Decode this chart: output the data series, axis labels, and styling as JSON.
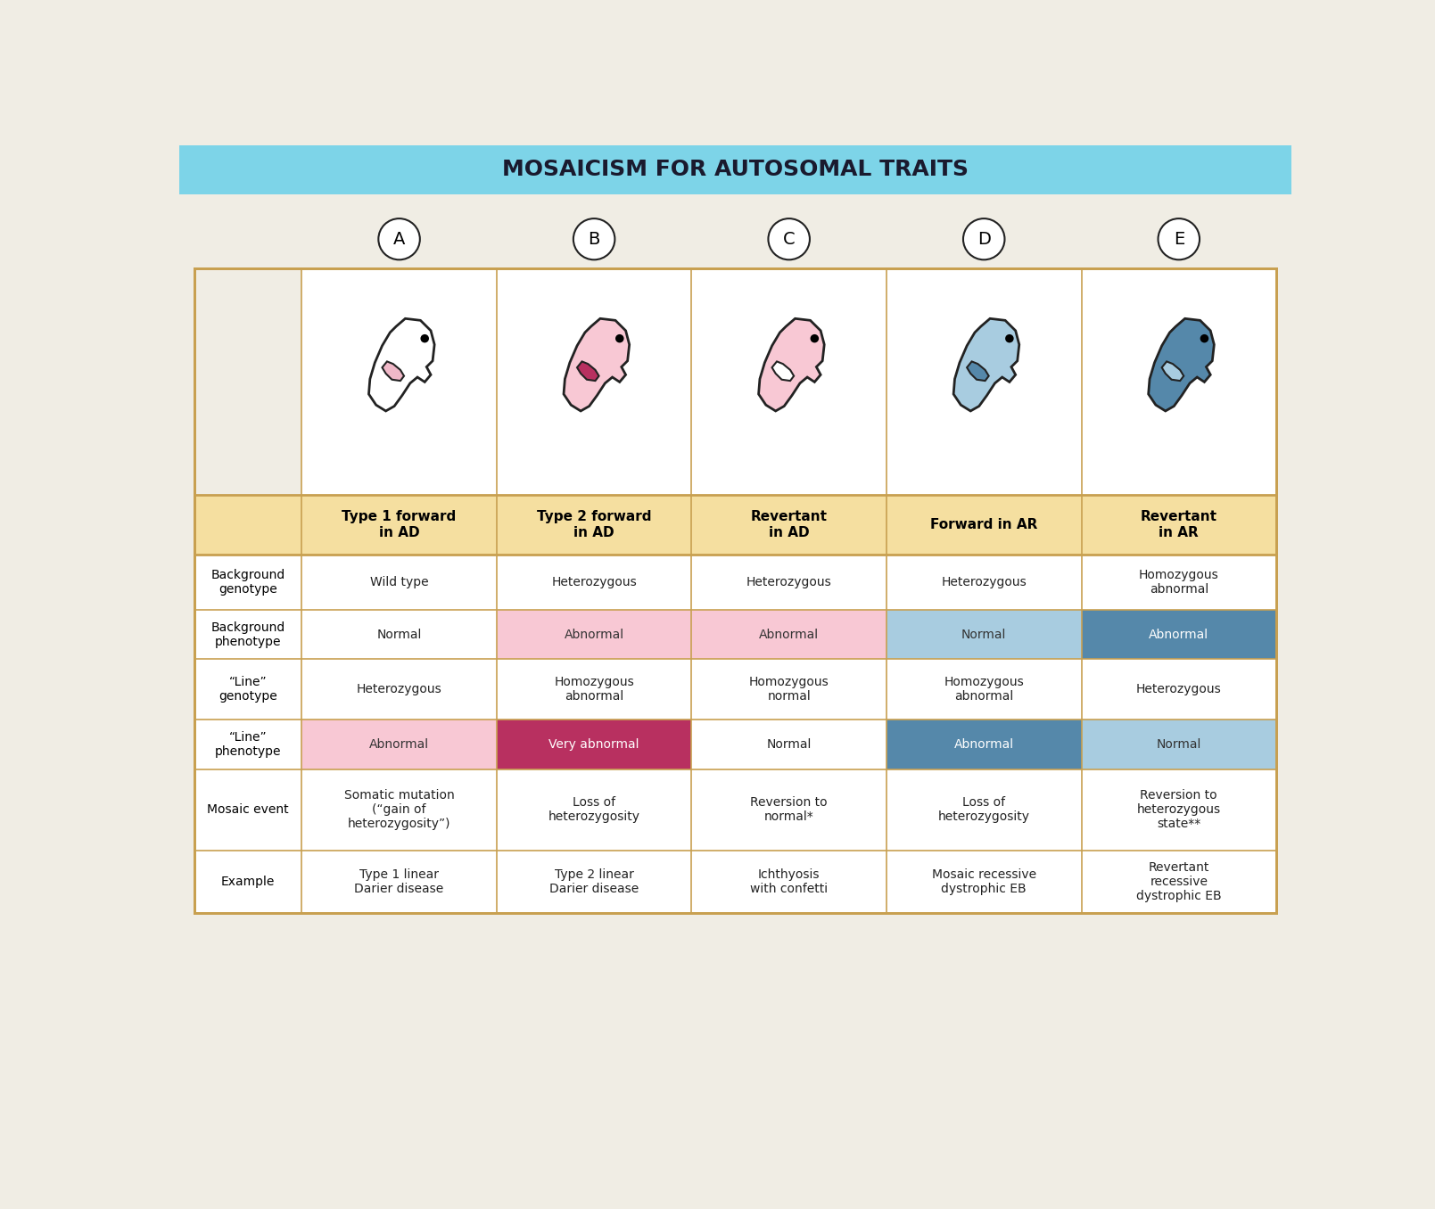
{
  "title": "MOSAICISM FOR AUTOSOMAL TRAITS",
  "title_bg": "#7dd4e8",
  "title_color": "#1a1a2e",
  "page_bg": "#f0ede4",
  "col_labels": [
    "A",
    "B",
    "C",
    "D",
    "E"
  ],
  "col_headers": [
    "Type 1 forward\nin AD",
    "Type 2 forward\nin AD",
    "Revertant\nin AD",
    "Forward in AR",
    "Revertant\nin AR"
  ],
  "col_header_bg": "#f5dfa0",
  "row_labels": [
    "Background\ngenotype",
    "Background\nphenotype",
    "“Line”\ngenotype",
    "“Line”\nphenotype",
    "Mosaic event",
    "Example"
  ],
  "table_data": [
    [
      "Wild type",
      "Heterozygous",
      "Heterozygous",
      "Heterozygous",
      "Homozygous\nabnormal"
    ],
    [
      "Normal",
      "Abnormal",
      "Abnormal",
      "Normal",
      "Abnormal"
    ],
    [
      "Heterozygous",
      "Homozygous\nabnormal",
      "Homozygous\nnormal",
      "Homozygous\nabnormal",
      "Heterozygous"
    ],
    [
      "Abnormal",
      "Very abnormal",
      "Normal",
      "Abnormal",
      "Normal"
    ],
    [
      "Somatic mutation\n(“gain of\nheterozygosity”)",
      "Loss of\nheterozygosity",
      "Reversion to\nnormal*",
      "Loss of\nheterozygosity",
      "Reversion to\nheterozygous\nstate**"
    ],
    [
      "Type 1 linear\nDarier disease",
      "Type 2 linear\nDarier disease",
      "Ichthyosis\nwith confetti",
      "Mosaic recessive\ndystrophic EB",
      "Revertant\nrecessive\ndystrophic EB"
    ]
  ],
  "cell_colors": {
    "1_1": "#f8c8d4",
    "1_2": "#f8c8d4",
    "1_3": "#a8cce0",
    "1_4": "#5588aa",
    "3_0": "#f8c8d4",
    "3_1": "#b83060",
    "3_3": "#5588aa",
    "3_4": "#a8cce0"
  },
  "cell_text_colors": {
    "1_1": "#333333",
    "1_2": "#333333",
    "1_3": "#333333",
    "1_4": "#ffffff",
    "3_0": "#333333",
    "3_1": "#ffffff",
    "3_3": "#ffffff",
    "3_4": "#333333"
  },
  "fetus_colors": {
    "A_body": "#ffffff",
    "A_patch": "#f0b8c8",
    "B_body": "#f8c8d4",
    "B_patch": "#b83060",
    "C_body": "#f8c8d4",
    "C_patch": "#ffffff",
    "D_body": "#a8cce0",
    "D_patch": "#5588aa",
    "E_body": "#5588aa",
    "E_patch": "#a8cce0"
  },
  "outline_color": "#222222",
  "border_color": "#c8a050",
  "grid_color": "#c8a050"
}
